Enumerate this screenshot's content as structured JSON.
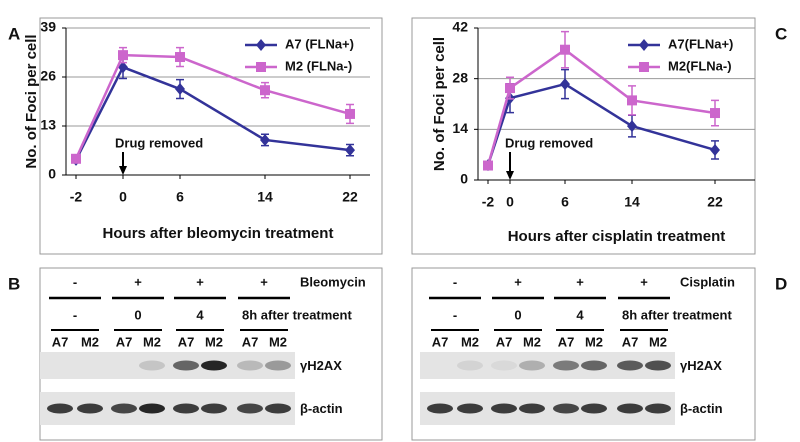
{
  "panel_labels": [
    "A",
    "B",
    "C",
    "D"
  ],
  "chart_data": [
    {
      "type": "line",
      "x_label": "Hours after bleomycin treatment",
      "y_label": "No. of Foci per cell",
      "categories": [
        "-2",
        "0",
        "6",
        "14",
        "22"
      ],
      "ylim": [
        0,
        39
      ],
      "yticks": [
        0,
        13,
        26,
        39
      ],
      "grid": true,
      "annotation": "Drug removed",
      "series": [
        {
          "name": "A7 (FLNa+)",
          "color": "#333399",
          "marker": "diamond",
          "values": [
            4,
            28.6,
            22.8,
            9.3,
            6.6
          ],
          "errors": [
            0.5,
            3,
            2.5,
            1.5,
            1.5
          ]
        },
        {
          "name": "M2 (FLNa-)",
          "color": "#cc66cc",
          "marker": "square",
          "values": [
            4.3,
            31.8,
            31.3,
            22.5,
            16.2
          ],
          "errors": [
            0.5,
            2,
            2.5,
            2,
            2.5
          ]
        }
      ]
    },
    {
      "type": "line",
      "x_label": "Hours after cisplatin treatment",
      "y_label": "No. of Foci per cell",
      "categories": [
        "-2",
        "0",
        "6",
        "14",
        "22"
      ],
      "ylim": [
        0,
        42
      ],
      "yticks": [
        0,
        14,
        28,
        42
      ],
      "grid": true,
      "annotation": "Drug removed",
      "series": [
        {
          "name": "A7(FLNa+)",
          "color": "#333399",
          "marker": "diamond",
          "values": [
            4.1,
            22.6,
            26.5,
            14.9,
            8.3
          ],
          "errors": [
            0.5,
            4,
            4,
            3,
            2.5
          ]
        },
        {
          "name": "M2(FLNa-)",
          "color": "#cc66cc",
          "marker": "square",
          "values": [
            4,
            25.4,
            36,
            22,
            18.5
          ],
          "errors": [
            0.5,
            3,
            5,
            4,
            3.5
          ]
        }
      ]
    }
  ],
  "blots": [
    {
      "treatment": "Bleomycin",
      "treatment_signs": [
        "-",
        "+",
        "+",
        "+"
      ],
      "timepoints": [
        "-",
        "0",
        "4",
        "8h after treatment"
      ],
      "lanes": [
        "A7",
        "M2",
        "A7",
        "M2",
        "A7",
        "M2",
        "A7",
        "M2"
      ],
      "rows": [
        "γH2AX",
        "β-actin"
      ]
    },
    {
      "treatment": "Cisplatin",
      "treatment_signs": [
        "-",
        "+",
        "+",
        "+"
      ],
      "timepoints": [
        "-",
        "0",
        "4",
        "8h after treatment"
      ],
      "lanes": [
        "A7",
        "M2",
        "A7",
        "M2",
        "A7",
        "M2",
        "A7",
        "M2"
      ],
      "rows": [
        "γH2AX",
        "β-actin"
      ]
    }
  ]
}
